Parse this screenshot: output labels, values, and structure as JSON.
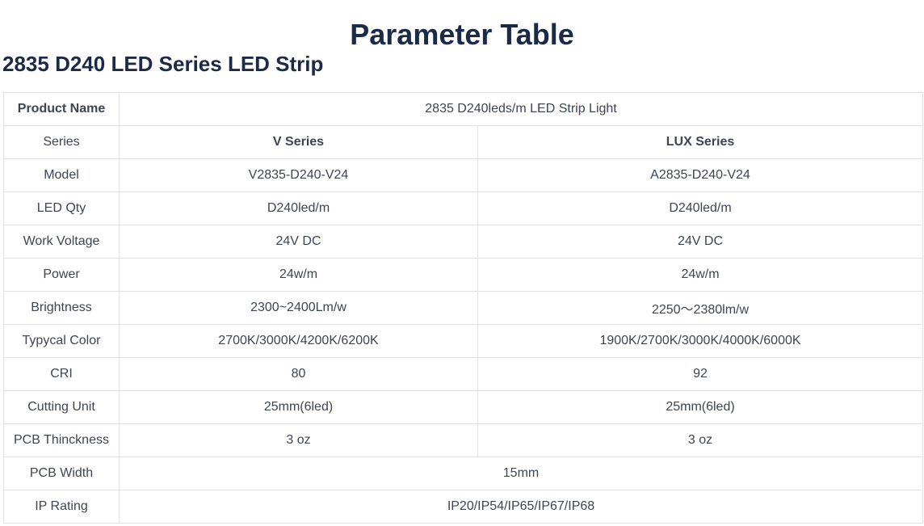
{
  "title": "Parameter Table",
  "subtitle": "2835 D240 LED Series LED Strip",
  "table": {
    "product_name": {
      "label": "Product Name",
      "value": "2835 D240leds/m LED Strip Light"
    },
    "series": {
      "label": "Series",
      "v": "V Series",
      "lux": "LUX Series"
    },
    "rows": [
      {
        "label": "Model",
        "v": "V2835-D240-V24",
        "lux": "A2835-D240-V24"
      },
      {
        "label": "LED Qty",
        "v": "D240led/m",
        "lux": "D240led/m"
      },
      {
        "label": "Work Voltage",
        "v": "24V DC",
        "lux": "24V DC"
      },
      {
        "label": "Power",
        "v": "24w/m",
        "lux": "24w/m"
      },
      {
        "label": "Brightness",
        "v": "2300~2400Lm/w",
        "lux": "2250～2380lm/w"
      },
      {
        "label": "Typycal Color",
        "v": "2700K/3000K/4200K/6200K",
        "lux": "1900K/2700K/3000K/4000K/6000K"
      },
      {
        "label": "CRI",
        "v": "80",
        "lux": "92"
      },
      {
        "label": "Cutting Unit",
        "v": "25mm(6led)",
        "lux": "25mm(6led)"
      },
      {
        "label": "PCB Thinckness",
        "v": "3 oz",
        "lux": "3 oz"
      }
    ],
    "pcb_width": {
      "label": "PCB Width",
      "value": "15mm"
    },
    "ip_rating": {
      "label": "IP Rating",
      "value": "IP20/IP54/IP65/IP67/IP68"
    }
  }
}
